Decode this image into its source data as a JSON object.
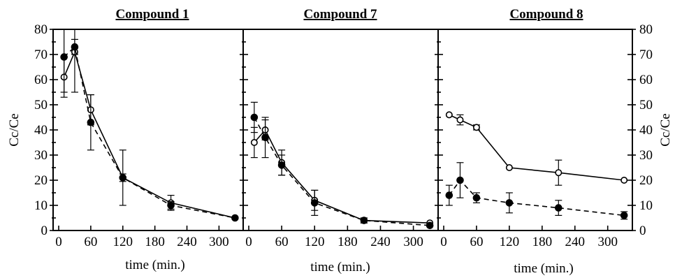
{
  "chart_data": [
    {
      "type": "line",
      "title": "Compound 1",
      "xlabel": "time (min.)",
      "ylabel": "Cc/Ce",
      "xlim": [
        0,
        340
      ],
      "ylim": [
        0,
        80
      ],
      "xticks": [
        "0",
        "60",
        "120",
        "180",
        "240",
        "300"
      ],
      "yticks": [
        "0",
        "10",
        "20",
        "30",
        "40",
        "50",
        "60",
        "70",
        "80"
      ],
      "series": [
        {
          "marker": "open-circle",
          "linestyle": "solid",
          "x": [
            10,
            30,
            60,
            120,
            210,
            330
          ],
          "y": [
            61,
            71,
            48,
            21,
            11,
            5
          ],
          "err": [
            8,
            16,
            6,
            11,
            3,
            0.5
          ]
        },
        {
          "marker": "filled-circle",
          "linestyle": "dashed",
          "x": [
            10,
            30,
            60,
            120,
            210,
            330
          ],
          "y": [
            69,
            73,
            43,
            21,
            10,
            5
          ],
          "err": [
            14,
            3,
            11,
            1.5,
            1.5,
            0.5
          ]
        }
      ]
    },
    {
      "type": "line",
      "title": "Compound 7",
      "xlabel": "time (min.)",
      "xlim": [
        0,
        340
      ],
      "ylim": [
        0,
        80
      ],
      "xticks": [
        "0",
        "60",
        "120",
        "180",
        "240",
        "300"
      ],
      "series": [
        {
          "marker": "open-circle",
          "linestyle": "solid",
          "x": [
            10,
            30,
            60,
            120,
            210,
            330
          ],
          "y": [
            35,
            40,
            27,
            12,
            4,
            3
          ],
          "err": [
            6,
            4,
            5,
            4,
            1,
            0.5
          ]
        },
        {
          "marker": "filled-circle",
          "linestyle": "dashed",
          "x": [
            10,
            30,
            60,
            120,
            210,
            330
          ],
          "y": [
            45,
            37,
            26,
            11,
            4,
            2
          ],
          "err": [
            6,
            8,
            4,
            5,
            1,
            0.5
          ]
        }
      ]
    },
    {
      "type": "line",
      "title": "Compound 8",
      "xlabel": "time (min.)",
      "ylabel": "Cc/Ce",
      "xlim": [
        0,
        340
      ],
      "ylim": [
        0,
        80
      ],
      "xticks": [
        "0",
        "60",
        "120",
        "180",
        "240",
        "300"
      ],
      "yticks": [
        "0",
        "10",
        "20",
        "30",
        "40",
        "50",
        "60",
        "70",
        "80"
      ],
      "series": [
        {
          "marker": "open-circle",
          "linestyle": "solid",
          "x": [
            10,
            30,
            60,
            120,
            210,
            330
          ],
          "y": [
            46,
            44,
            41,
            25,
            23,
            20
          ],
          "err": [
            0.5,
            2,
            1,
            0.5,
            5,
            0.5
          ]
        },
        {
          "marker": "filled-circle",
          "linestyle": "dashed",
          "x": [
            10,
            30,
            60,
            120,
            210,
            330
          ],
          "y": [
            14,
            20,
            13,
            11,
            9,
            6
          ],
          "err": [
            4,
            7,
            2,
            4,
            3,
            1.5
          ]
        }
      ]
    }
  ]
}
